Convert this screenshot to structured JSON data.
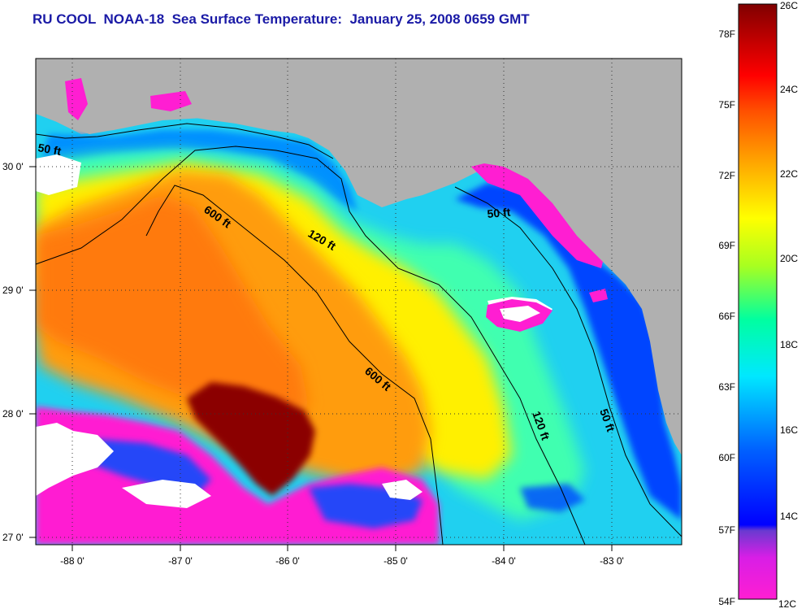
{
  "title": "RU COOL  NOAA-18  Sea Surface Temperature:  January 25, 2008 0659 GMT",
  "map": {
    "lon_labels": [
      "-88 0'",
      "-87 0'",
      "-86 0'",
      "-85 0'",
      "-84 0'",
      "-83 0'"
    ],
    "lat_labels": [
      "30 0'",
      "29 0'",
      "28 0'",
      "27 0'"
    ],
    "contour_labels": [
      "50 ft",
      "600 ft",
      "120 ft",
      "50 ft",
      "600 ft",
      "120 ft",
      "50 ft"
    ],
    "colors": {
      "land": "#b0b0b0",
      "cloud": "#ffffff",
      "warm_core": "#8b0000",
      "grid": "#333333",
      "contour": "#000000"
    }
  },
  "colorbar": {
    "fahrenheit_labels": [
      "78F",
      "75F",
      "72F",
      "69F",
      "66F",
      "63F",
      "60F",
      "57F",
      "54F"
    ],
    "celsius_labels": [
      "26C",
      "24C",
      "22C",
      "20C",
      "18C",
      "16C",
      "14C",
      "12C"
    ],
    "range_c": [
      12,
      26
    ],
    "stops": [
      "#ff1ed2",
      "#8a2be2",
      "#0000ff",
      "#0078ff",
      "#00e0ff",
      "#00ffc0",
      "#a0ff20",
      "#ffff00",
      "#ffa000",
      "#ff5000",
      "#ff0000",
      "#b00000",
      "#800000"
    ]
  }
}
